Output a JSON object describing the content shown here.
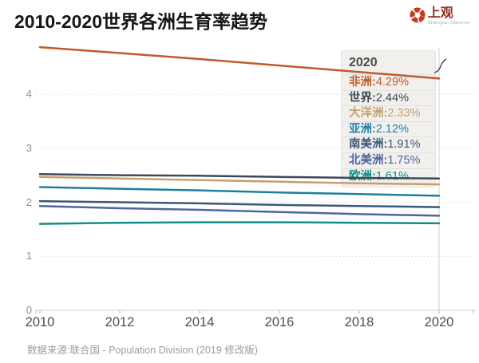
{
  "header": {
    "title": "2010-2020世界各洲生育率趋势"
  },
  "logo": {
    "name": "上观",
    "subtitle": "Shanghai Observer",
    "text_color": "#8d2b1e",
    "icon_color": "#c43a22"
  },
  "chart_data": {
    "type": "line",
    "title": "2010-2020世界各洲生育率趋势",
    "x": [
      2010,
      2012,
      2014,
      2016,
      2018,
      2020
    ],
    "xticks": [
      "2010",
      "2012",
      "2014",
      "2016",
      "2018",
      "2020"
    ],
    "yticks": [
      "0",
      "1",
      "2",
      "3",
      "4"
    ],
    "ylim": [
      0,
      4.95
    ],
    "grid": "horizontal-dashed",
    "legend_position": "none",
    "hover_year": "2020",
    "series": [
      {
        "name": "非洲",
        "color": "#c05a2b",
        "values": [
          4.87,
          4.76,
          4.65,
          4.53,
          4.41,
          4.29
        ]
      },
      {
        "name": "世界",
        "color": "#3d4a5c",
        "values": [
          2.52,
          2.5,
          2.49,
          2.47,
          2.45,
          2.44
        ]
      },
      {
        "name": "大洋洲",
        "color": "#c5a06b",
        "values": [
          2.47,
          2.44,
          2.41,
          2.38,
          2.35,
          2.33
        ]
      },
      {
        "name": "亚洲",
        "color": "#1c809b",
        "values": [
          2.28,
          2.25,
          2.22,
          2.18,
          2.15,
          2.12
        ]
      },
      {
        "name": "南美洲",
        "color": "#3e5779",
        "values": [
          2.02,
          2.0,
          1.98,
          1.95,
          1.93,
          1.91
        ]
      },
      {
        "name": "北美洲",
        "color": "#51649d",
        "values": [
          1.93,
          1.89,
          1.86,
          1.82,
          1.78,
          1.75
        ]
      },
      {
        "name": "欧洲",
        "color": "#0f8f85",
        "values": [
          1.6,
          1.62,
          1.63,
          1.63,
          1.62,
          1.61
        ]
      }
    ]
  },
  "tooltip": {
    "title": "2020",
    "rows": [
      {
        "label": "非洲:",
        "value": "4.29%",
        "color": "#c05a2b"
      },
      {
        "label": "世界:",
        "value": "2.44%",
        "color": "#3c4653"
      },
      {
        "label": "大洋洲:",
        "value": "2.33%",
        "color": "#c5a06b"
      },
      {
        "label": "亚洲:",
        "value": "2.12%",
        "color": "#2382a6"
      },
      {
        "label": "南美洲:",
        "value": "1.91%",
        "color": "#3e5779"
      },
      {
        "label": "北美洲:",
        "value": "1.75%",
        "color": "#51649d"
      },
      {
        "label": "欧洲:",
        "value": "1.61%",
        "color": "#0f8f85"
      }
    ]
  },
  "footer": {
    "source": "数据来源:联合国 - Population Division (2019 修改版)"
  }
}
